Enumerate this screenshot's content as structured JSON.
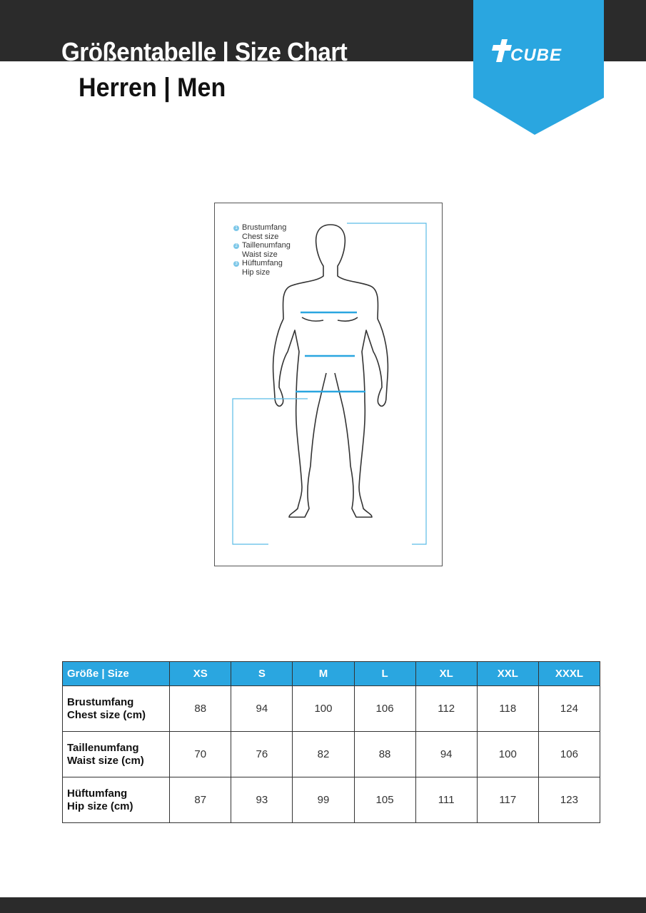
{
  "header": {
    "title": "Größentabelle | Size Chart",
    "subtitle": "Herren | Men",
    "brand": "CUBE",
    "brand_color": "#2aa6e0",
    "bar_color": "#2b2b2b"
  },
  "figure": {
    "legend": [
      {
        "num": "1",
        "de": "Brustumfang",
        "en": "Chest size"
      },
      {
        "num": "2",
        "de": "Taillenumfang",
        "en": "Waist size"
      },
      {
        "num": "3",
        "de": "Hüftumfang",
        "en": "Hip size"
      }
    ]
  },
  "table": {
    "headers": [
      "Größe | Size",
      "XS",
      "S",
      "M",
      "L",
      "XL",
      "XXL",
      "XXXL"
    ],
    "rows": [
      {
        "de": "Brustumfang",
        "en": "Chest size (cm)",
        "values": [
          "88",
          "94",
          "100",
          "106",
          "112",
          "118",
          "124"
        ]
      },
      {
        "de": "Taillenumfang",
        "en": "Waist size (cm)",
        "values": [
          "70",
          "76",
          "82",
          "88",
          "94",
          "100",
          "106"
        ]
      },
      {
        "de": "Hüftumfang",
        "en": "Hip size (cm)",
        "values": [
          "87",
          "93",
          "99",
          "105",
          "111",
          "117",
          "123"
        ]
      }
    ]
  }
}
